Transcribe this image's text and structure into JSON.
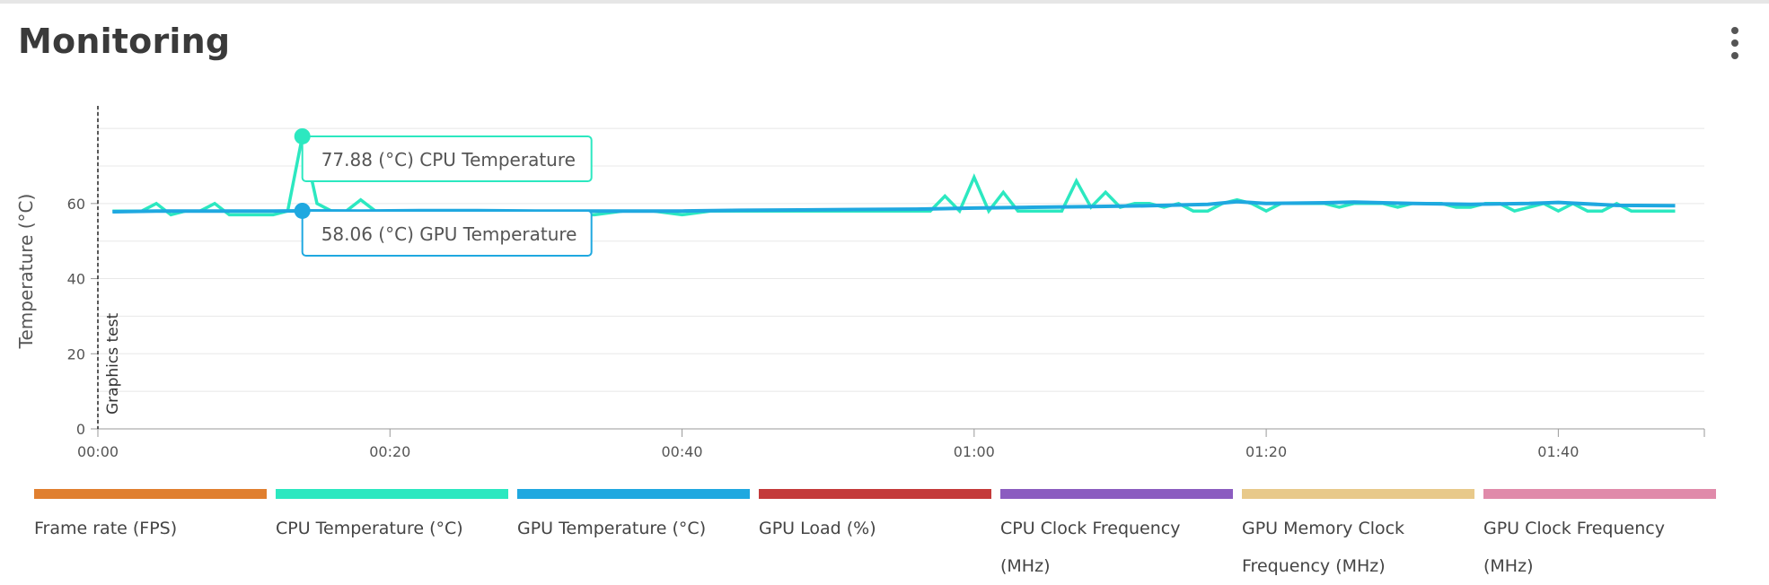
{
  "header": {
    "title": "Monitoring",
    "menu_icon": "more-vertical-icon"
  },
  "chart_data": {
    "type": "line",
    "ylabel": "Temperature (°C)",
    "xlabel": "",
    "ylim": [
      0,
      86
    ],
    "yticks": [
      0,
      20,
      40,
      60
    ],
    "xlim_seconds": [
      0,
      6600
    ],
    "xticks": [
      "00:00",
      "00:20",
      "00:40",
      "01:00",
      "01:20",
      "01:40"
    ],
    "grid": true,
    "legend_position": "bottom",
    "annotation": {
      "label": "Graphics test",
      "x": "00:00"
    },
    "series": [
      {
        "name": "CPU Temperature (°C)",
        "color": "#2ce8c0",
        "points": [
          [
            "00:01",
            58
          ],
          [
            "00:02",
            58
          ],
          [
            "00:03",
            58
          ],
          [
            "00:04",
            60
          ],
          [
            "00:05",
            57
          ],
          [
            "00:06",
            58
          ],
          [
            "00:07",
            58
          ],
          [
            "00:08",
            60
          ],
          [
            "00:09",
            57
          ],
          [
            "00:10",
            57
          ],
          [
            "00:11",
            57
          ],
          [
            "00:12",
            57
          ],
          [
            "00:13",
            58
          ],
          [
            "00:14",
            77.88
          ],
          [
            "00:15",
            60
          ],
          [
            "00:16",
            58
          ],
          [
            "00:17",
            58
          ],
          [
            "00:18",
            61
          ],
          [
            "00:19",
            58
          ],
          [
            "00:20",
            58
          ],
          [
            "00:22",
            58
          ],
          [
            "00:24",
            58
          ],
          [
            "00:26",
            58
          ],
          [
            "00:28",
            58
          ],
          [
            "00:30",
            58
          ],
          [
            "00:32",
            57
          ],
          [
            "00:34",
            57
          ],
          [
            "00:36",
            58
          ],
          [
            "00:38",
            58
          ],
          [
            "00:40",
            57
          ],
          [
            "00:42",
            58
          ],
          [
            "00:44",
            58
          ],
          [
            "00:46",
            58
          ],
          [
            "00:48",
            58
          ],
          [
            "00:50",
            58
          ],
          [
            "00:52",
            58
          ],
          [
            "00:54",
            58
          ],
          [
            "00:56",
            58
          ],
          [
            "00:57",
            58
          ],
          [
            "00:58",
            62
          ],
          [
            "00:59",
            58
          ],
          [
            "01:00",
            67
          ],
          [
            "01:01",
            58
          ],
          [
            "01:02",
            63
          ],
          [
            "01:03",
            58
          ],
          [
            "01:04",
            58
          ],
          [
            "01:05",
            58
          ],
          [
            "01:06",
            58
          ],
          [
            "01:07",
            66
          ],
          [
            "01:08",
            59
          ],
          [
            "01:09",
            63
          ],
          [
            "01:10",
            59
          ],
          [
            "01:11",
            60
          ],
          [
            "01:12",
            60
          ],
          [
            "01:13",
            59
          ],
          [
            "01:14",
            60
          ],
          [
            "01:15",
            58
          ],
          [
            "01:16",
            58
          ],
          [
            "01:17",
            60
          ],
          [
            "01:18",
            61
          ],
          [
            "01:19",
            60
          ],
          [
            "01:20",
            58
          ],
          [
            "01:21",
            60
          ],
          [
            "01:22",
            60
          ],
          [
            "01:23",
            60
          ],
          [
            "01:24",
            60
          ],
          [
            "01:25",
            59
          ],
          [
            "01:26",
            60
          ],
          [
            "01:27",
            60
          ],
          [
            "01:28",
            60
          ],
          [
            "01:29",
            59
          ],
          [
            "01:30",
            60
          ],
          [
            "01:31",
            60
          ],
          [
            "01:32",
            60
          ],
          [
            "01:33",
            59
          ],
          [
            "01:34",
            59
          ],
          [
            "01:35",
            60
          ],
          [
            "01:36",
            60
          ],
          [
            "01:37",
            58
          ],
          [
            "01:38",
            59
          ],
          [
            "01:39",
            60
          ],
          [
            "01:40",
            58
          ],
          [
            "01:41",
            60
          ],
          [
            "01:42",
            58
          ],
          [
            "01:43",
            58
          ],
          [
            "01:44",
            60
          ],
          [
            "01:45",
            58
          ],
          [
            "01:46",
            58
          ],
          [
            "01:47",
            58
          ],
          [
            "01:48",
            58
          ]
        ]
      },
      {
        "name": "GPU Temperature (°C)",
        "color": "#1fa8e0",
        "points": [
          [
            "00:01",
            57.8
          ],
          [
            "00:04",
            58
          ],
          [
            "00:08",
            58
          ],
          [
            "00:12",
            58
          ],
          [
            "00:14",
            58.06
          ],
          [
            "00:18",
            58
          ],
          [
            "00:22",
            58.1
          ],
          [
            "00:26",
            58.1
          ],
          [
            "00:30",
            58
          ],
          [
            "00:34",
            58
          ],
          [
            "00:38",
            58
          ],
          [
            "00:40",
            58
          ],
          [
            "00:44",
            58.2
          ],
          [
            "00:48",
            58.3
          ],
          [
            "00:52",
            58.4
          ],
          [
            "00:56",
            58.5
          ],
          [
            "01:00",
            58.8
          ],
          [
            "01:04",
            59
          ],
          [
            "01:08",
            59.2
          ],
          [
            "01:12",
            59.4
          ],
          [
            "01:16",
            59.8
          ],
          [
            "01:18",
            60.5
          ],
          [
            "01:20",
            60
          ],
          [
            "01:24",
            60.2
          ],
          [
            "01:26",
            60.4
          ],
          [
            "01:30",
            60
          ],
          [
            "01:34",
            59.8
          ],
          [
            "01:38",
            60
          ],
          [
            "01:40",
            60.3
          ],
          [
            "01:44",
            59.5
          ],
          [
            "01:48",
            59.4
          ]
        ]
      }
    ],
    "tooltips": [
      {
        "text": "77.88 (°C) CPU Temperature",
        "x": "00:14",
        "y": 77.88,
        "series": 0
      },
      {
        "text": "58.06 (°C) GPU Temperature",
        "x": "00:14",
        "y": 58.06,
        "series": 1
      }
    ]
  },
  "legend": {
    "items": [
      {
        "label": "Frame rate (FPS)",
        "color": "#e07f2f"
      },
      {
        "label": "CPU Temperature (°C)",
        "color": "#2ce8c0"
      },
      {
        "label": "GPU Temperature (°C)",
        "color": "#1fa8e0"
      },
      {
        "label": "GPU Load (%)",
        "color": "#c43a3a"
      },
      {
        "label": "CPU Clock Frequency (MHz)",
        "color": "#8b5cc0"
      },
      {
        "label": "GPU Memory Clock Frequency (MHz)",
        "color": "#e8c98a"
      },
      {
        "label": "GPU Clock Frequency (MHz)",
        "color": "#e08aaa"
      }
    ]
  }
}
